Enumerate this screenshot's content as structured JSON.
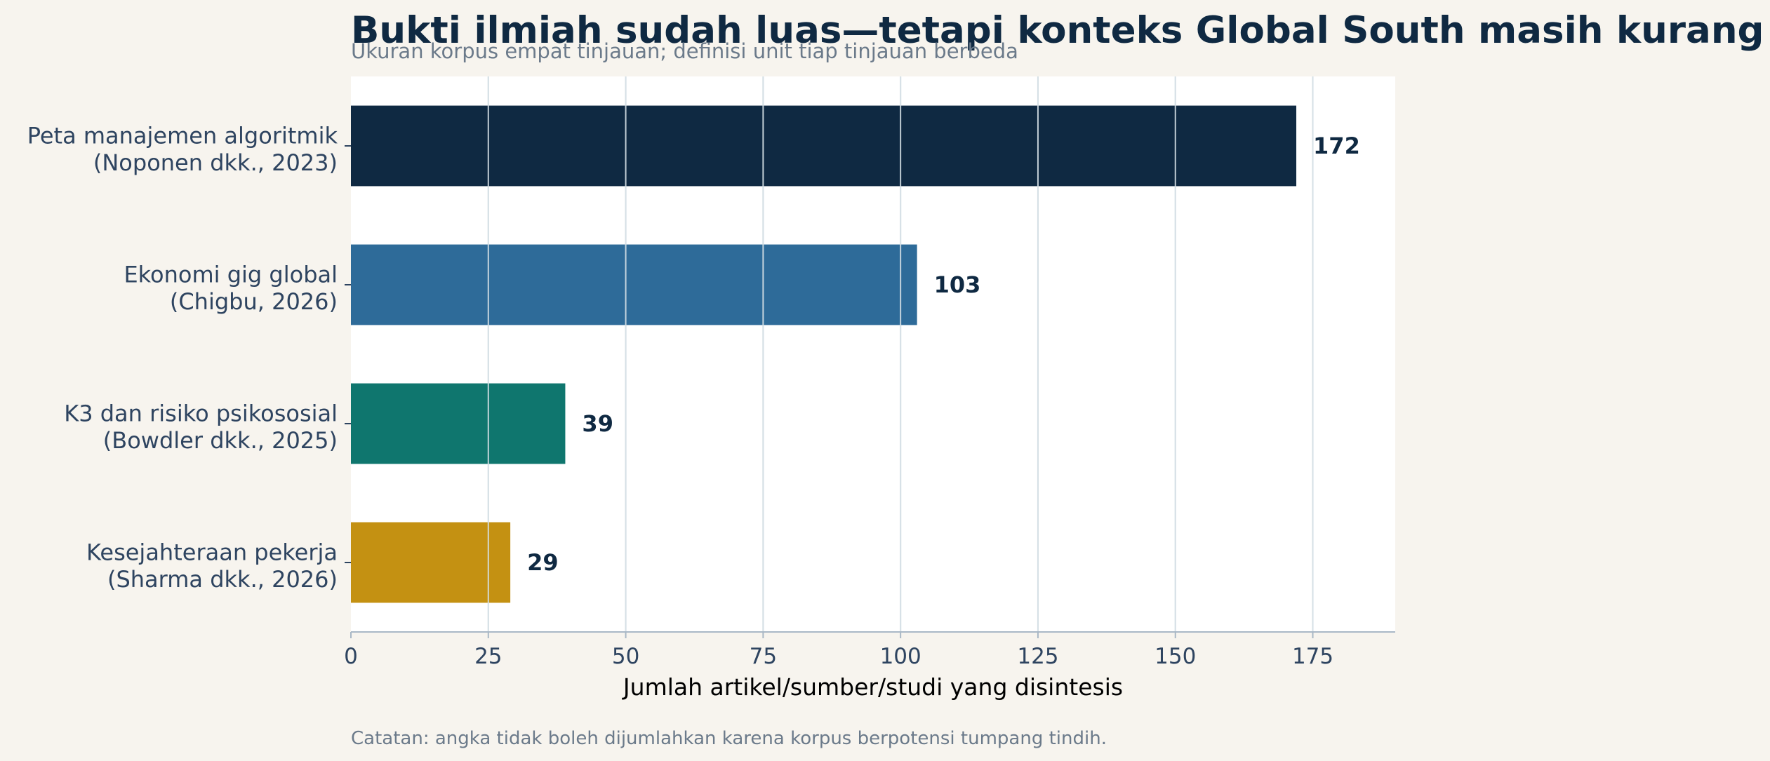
{
  "chart_data": {
    "type": "bar",
    "orientation": "horizontal",
    "title": "Bukti ilmiah sudah luas—tetapi konteks Global South masih kurang",
    "subtitle": "Ukuran korpus empat tinjauan; definisi unit tiap tinjauan berbeda",
    "xlabel": "Jumlah artikel/sumber/studi yang disintesis",
    "ylabel": "",
    "xlim": [
      0,
      190
    ],
    "xticks": [
      0,
      25,
      50,
      75,
      100,
      125,
      150,
      175
    ],
    "grid": "vertical",
    "categories": [
      [
        "Peta manajemen algoritmik",
        "(Noponen dkk., 2023)"
      ],
      [
        "Ekonomi gig global",
        "(Chigbu, 2026)"
      ],
      [
        "K3 dan risiko psikososial",
        "(Bowdler dkk., 2025)"
      ],
      [
        "Kesejahteraan pekerja",
        "(Sharma dkk., 2026)"
      ]
    ],
    "values": [
      172,
      103,
      39,
      29
    ],
    "colors": [
      "#0f2942",
      "#2e6b99",
      "#0f766e",
      "#c49112"
    ],
    "note": "Catatan: angka tidak boleh dijumlahkan karena korpus berpotensi tumpang tindih."
  },
  "colors": {
    "background": "#f7f4ee",
    "plot_background": "#ffffff",
    "grid": "#d6e0e6",
    "axis": "#a9b8c6"
  }
}
